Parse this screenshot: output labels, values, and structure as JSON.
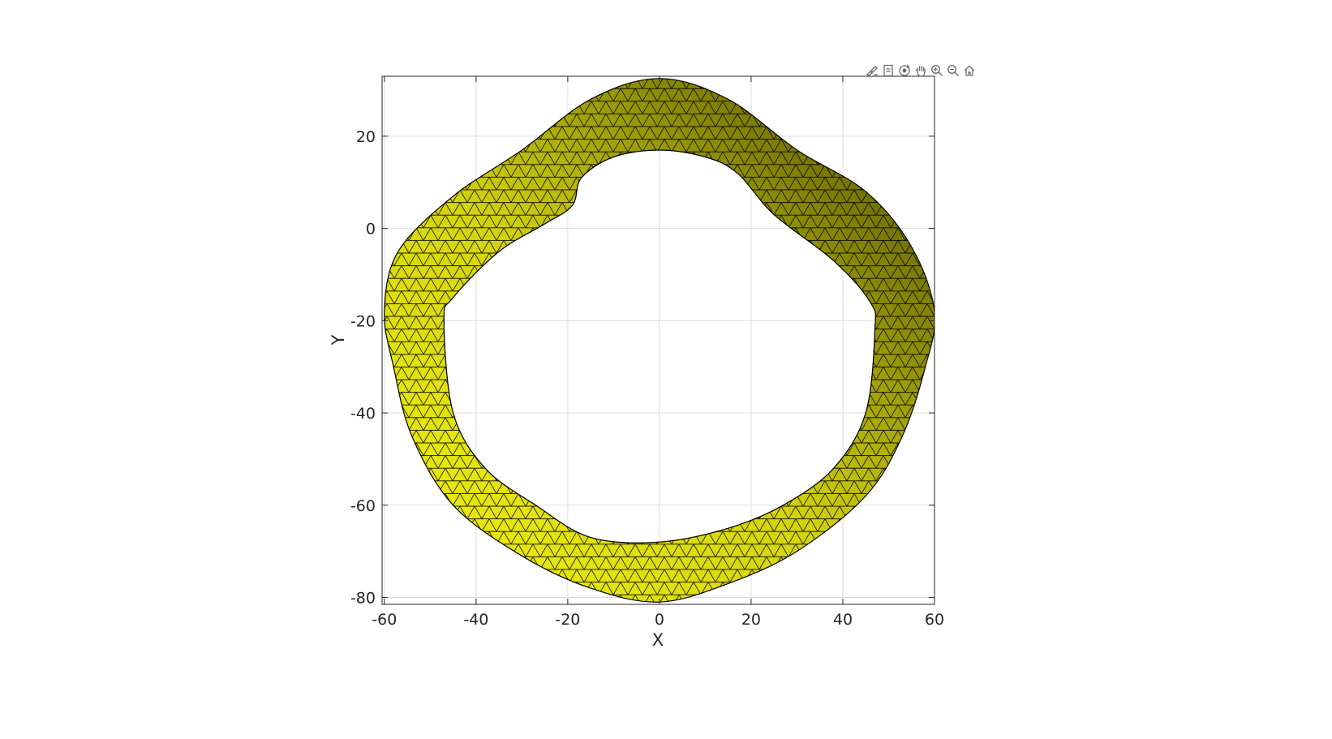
{
  "toolbar": {
    "buttons": [
      {
        "name": "brush-icon"
      },
      {
        "name": "data-tips-icon"
      },
      {
        "name": "rotate-3d-icon"
      },
      {
        "name": "pan-icon"
      },
      {
        "name": "zoom-in-icon"
      },
      {
        "name": "zoom-out-icon"
      },
      {
        "name": "home-icon"
      }
    ]
  },
  "axes": {
    "xlabel": "X",
    "ylabel": "Y",
    "xlim": [
      -60.5,
      60
    ],
    "ylim": [
      -81.5,
      33
    ],
    "xticks": [
      "-60",
      "-40",
      "-20",
      "0",
      "20",
      "40",
      "60"
    ],
    "yticks": [
      "-80",
      "-60",
      "-40",
      "-20",
      "0",
      "20"
    ],
    "grid": true,
    "box": true
  },
  "colors": {
    "surface_light": "#f2f20f",
    "surface_dark": "#4a4a00",
    "inner_wall": "#5fa845",
    "edge": "#000000",
    "grid": "#dcdcdc",
    "axis": "#262626"
  },
  "shape": {
    "outer_boundary": [
      [
        0,
        32.5
      ],
      [
        15,
        28
      ],
      [
        30,
        17
      ],
      [
        45,
        8
      ],
      [
        55,
        -4
      ],
      [
        60,
        -18
      ],
      [
        58,
        -30
      ],
      [
        53,
        -45
      ],
      [
        45,
        -58
      ],
      [
        30,
        -70
      ],
      [
        15,
        -77
      ],
      [
        0,
        -81
      ],
      [
        -15,
        -78
      ],
      [
        -30,
        -71
      ],
      [
        -45,
        -60
      ],
      [
        -54,
        -45
      ],
      [
        -58,
        -30
      ],
      [
        -60,
        -18
      ],
      [
        -57,
        -5
      ],
      [
        -45,
        7
      ],
      [
        -30,
        17
      ],
      [
        -15,
        28
      ]
    ],
    "inner_boundary": [
      [
        0,
        17
      ],
      [
        10,
        15.5
      ],
      [
        17,
        12
      ],
      [
        25,
        3
      ],
      [
        38,
        -7
      ],
      [
        46,
        -16
      ],
      [
        47,
        -22
      ],
      [
        45,
        -40
      ],
      [
        38,
        -52
      ],
      [
        27,
        -60
      ],
      [
        15,
        -65
      ],
      [
        0,
        -68
      ],
      [
        -15,
        -67
      ],
      [
        -27,
        -60
      ],
      [
        -38,
        -52
      ],
      [
        -45,
        -40
      ],
      [
        -47,
        -20
      ],
      [
        -45,
        -15
      ],
      [
        -35,
        -5
      ],
      [
        -25,
        1
      ],
      [
        -19,
        5
      ],
      [
        -17,
        11
      ],
      [
        -10,
        15.5
      ]
    ]
  }
}
